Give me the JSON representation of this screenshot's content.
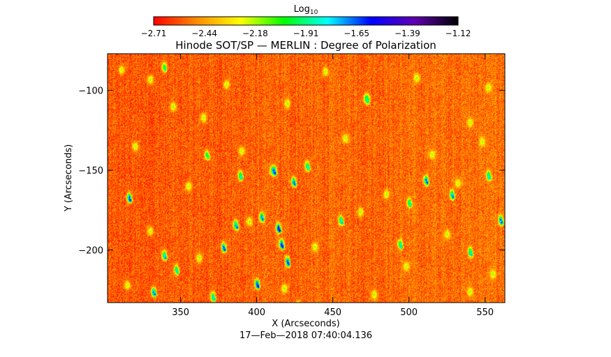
{
  "chart_data": {
    "type": "heatmap",
    "title": "Hinode SOT/SP — MERLIN : Degree of Polarization",
    "xlabel": "X (Arcseconds)",
    "ylabel": "Y (Arcseconds)",
    "timestamp": "17—Feb—2018 07:40:04.136",
    "xlim": [
      302,
      563
    ],
    "ylim": [
      -233,
      -77
    ],
    "xticks": [
      350,
      400,
      450,
      500,
      550
    ],
    "yticks": [
      -100,
      -150,
      -200
    ],
    "colorbar": {
      "label_base": "Log",
      "label_sub": "10",
      "range": [
        -2.71,
        -1.12
      ],
      "ticks": [
        "−2.71",
        "−2.44",
        "−2.18",
        "−1.91",
        "−1.65",
        "−1.39",
        "−1.12"
      ],
      "colormap": [
        "#ff0000",
        "#ff8c00",
        "#ffff00",
        "#00ff00",
        "#00ffff",
        "#0000ff",
        "#6000b0",
        "#000000"
      ]
    },
    "field": {
      "background_mean": -2.57,
      "noise_amplitude": 0.13,
      "bright_speckles": [
        {
          "x": 311,
          "y": -87
        },
        {
          "x": 330,
          "y": -93
        },
        {
          "x": 345,
          "y": -110
        },
        {
          "x": 365,
          "y": -117
        },
        {
          "x": 380,
          "y": -96
        },
        {
          "x": 420,
          "y": -108
        },
        {
          "x": 445,
          "y": -88
        },
        {
          "x": 472,
          "y": -105
        },
        {
          "x": 505,
          "y": -92
        },
        {
          "x": 540,
          "y": -120
        },
        {
          "x": 552,
          "y": -98
        },
        {
          "x": 320,
          "y": -135
        },
        {
          "x": 355,
          "y": -160
        },
        {
          "x": 390,
          "y": -138
        },
        {
          "x": 410,
          "y": -150
        },
        {
          "x": 458,
          "y": -130
        },
        {
          "x": 485,
          "y": -165
        },
        {
          "x": 515,
          "y": -140
        },
        {
          "x": 532,
          "y": -158
        },
        {
          "x": 548,
          "y": -132
        },
        {
          "x": 330,
          "y": -188
        },
        {
          "x": 362,
          "y": -205
        },
        {
          "x": 395,
          "y": -182
        },
        {
          "x": 438,
          "y": -198
        },
        {
          "x": 468,
          "y": -176
        },
        {
          "x": 498,
          "y": -210
        },
        {
          "x": 525,
          "y": -190
        },
        {
          "x": 555,
          "y": -215
        },
        {
          "x": 315,
          "y": -222
        },
        {
          "x": 418,
          "y": -224
        },
        {
          "x": 477,
          "y": -228
        },
        {
          "x": 540,
          "y": -226
        }
      ],
      "strong_features": [
        {
          "x": 316,
          "y": -167,
          "value": -1.45
        },
        {
          "x": 332,
          "y": -226,
          "value": -1.55
        },
        {
          "x": 339,
          "y": -203,
          "value": -1.65
        },
        {
          "x": 347,
          "y": -212,
          "value": -1.75
        },
        {
          "x": 371,
          "y": -229,
          "value": -1.7
        },
        {
          "x": 378,
          "y": -198,
          "value": -1.5
        },
        {
          "x": 386,
          "y": -184,
          "value": -1.6
        },
        {
          "x": 389,
          "y": -153,
          "value": -1.75
        },
        {
          "x": 400,
          "y": -221,
          "value": -1.35
        },
        {
          "x": 403,
          "y": -179,
          "value": -1.55
        },
        {
          "x": 411,
          "y": -150,
          "value": -1.5
        },
        {
          "x": 414,
          "y": -186,
          "value": -1.3
        },
        {
          "x": 416,
          "y": -196,
          "value": -1.35
        },
        {
          "x": 420,
          "y": -207,
          "value": -1.45
        },
        {
          "x": 424,
          "y": -157,
          "value": -1.55
        },
        {
          "x": 427,
          "y": -235,
          "value": -1.65
        },
        {
          "x": 433,
          "y": -147,
          "value": -1.75
        },
        {
          "x": 472,
          "y": -105,
          "value": -1.85
        },
        {
          "x": 455,
          "y": -181,
          "value": -1.7
        },
        {
          "x": 494,
          "y": -196,
          "value": -1.75
        },
        {
          "x": 511,
          "y": -156,
          "value": -1.55
        },
        {
          "x": 528,
          "y": -165,
          "value": -1.6
        },
        {
          "x": 540,
          "y": -201,
          "value": -1.7
        },
        {
          "x": 552,
          "y": -153,
          "value": -1.7
        },
        {
          "x": 560,
          "y": -181,
          "value": -1.55
        },
        {
          "x": 339,
          "y": -85,
          "value": -1.85
        },
        {
          "x": 367,
          "y": -140,
          "value": -1.85
        },
        {
          "x": 500,
          "y": -170,
          "value": -1.8
        }
      ]
    }
  }
}
